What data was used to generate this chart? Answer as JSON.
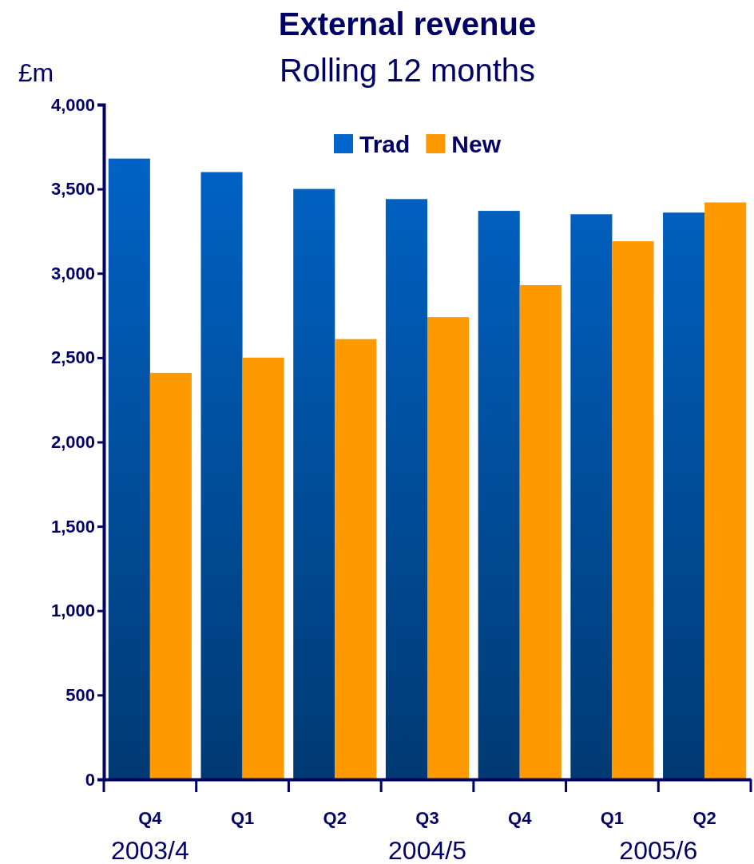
{
  "chart_data": {
    "type": "bar",
    "title": "External revenue",
    "subtitle": "Rolling 12 months",
    "ylabel": "£m",
    "categories": [
      "Q4",
      "Q1",
      "Q2",
      "Q3",
      "Q4",
      "Q1",
      "Q2"
    ],
    "series": [
      {
        "name": "Trad",
        "color": "#0066cc",
        "values": [
          3680,
          3600,
          3500,
          3440,
          3370,
          3350,
          3360
        ]
      },
      {
        "name": "New",
        "color": "#ff9900",
        "values": [
          2410,
          2500,
          2610,
          2740,
          2930,
          3190,
          3420
        ]
      }
    ],
    "ylim": [
      0,
      4000
    ],
    "yticks": [
      {
        "value": 0,
        "label": "0"
      },
      {
        "value": 500,
        "label": "500"
      },
      {
        "value": 1000,
        "label": "1,000"
      },
      {
        "value": 1500,
        "label": "1,500"
      },
      {
        "value": 2000,
        "label": "2,000"
      },
      {
        "value": 2500,
        "label": "2,500"
      },
      {
        "value": 3000,
        "label": "3,000"
      },
      {
        "value": 3500,
        "label": "3,500"
      },
      {
        "value": 4000,
        "label": "4,000"
      }
    ],
    "legend": "top",
    "grid": false,
    "annotations": [
      "2003/4",
      "2004/5",
      "2005/6"
    ]
  }
}
